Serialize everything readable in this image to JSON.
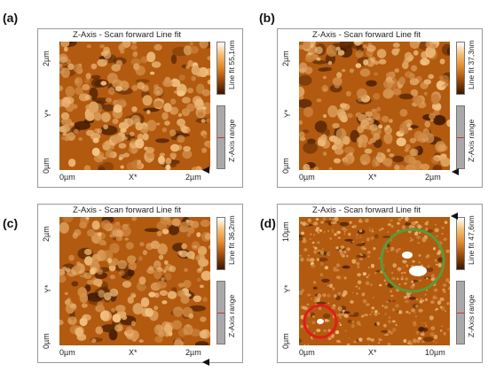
{
  "panels": [
    {
      "label": "(a)",
      "title": "Z-Axis - Scan forward   Line fit",
      "y_top": "2µm",
      "y_bottom": "0µm",
      "y_axis": "Y*",
      "x_left": "0µm",
      "x_mid": "X*",
      "x_right": "2µm",
      "colorbar_label": "Line fit 55,1nm",
      "range_label": "Z-Axis range"
    },
    {
      "label": "(b)",
      "title": "Z-Axis - Scan forward   Line fit",
      "y_top": "2µm",
      "y_bottom": "0µm",
      "y_axis": "Y*",
      "x_left": "0µm",
      "x_mid": "X*",
      "x_right": "2µm",
      "colorbar_label": "Line fit 37,3nm",
      "range_label": "Z-Axis range"
    },
    {
      "label": "(c)",
      "title": "Z-Axis - Scan forward   Line fit",
      "y_top": "2µm",
      "y_bottom": "0µm",
      "y_axis": "Y*",
      "x_left": "0µm",
      "x_mid": "X*",
      "x_right": "2µm",
      "colorbar_label": "Line fit 36,2nm",
      "range_label": "Z-Axis range"
    },
    {
      "label": "(d)",
      "title": "Z-Axis - Scan forward   Line fit",
      "y_top": "10µm",
      "y_bottom": "0µm",
      "y_axis": "Y*",
      "x_left": "0µm",
      "x_mid": "X*",
      "x_right": "10µm",
      "colorbar_label": "Line fit 47,6nm",
      "range_label": "Z-Axis range"
    }
  ],
  "colors": {
    "afm_dark": "#3a1600",
    "afm_mid": "#b25a10",
    "afm_light": "#f6c98a",
    "green_circle": "#5a9a3a",
    "red_circle": "#e11d1d"
  }
}
